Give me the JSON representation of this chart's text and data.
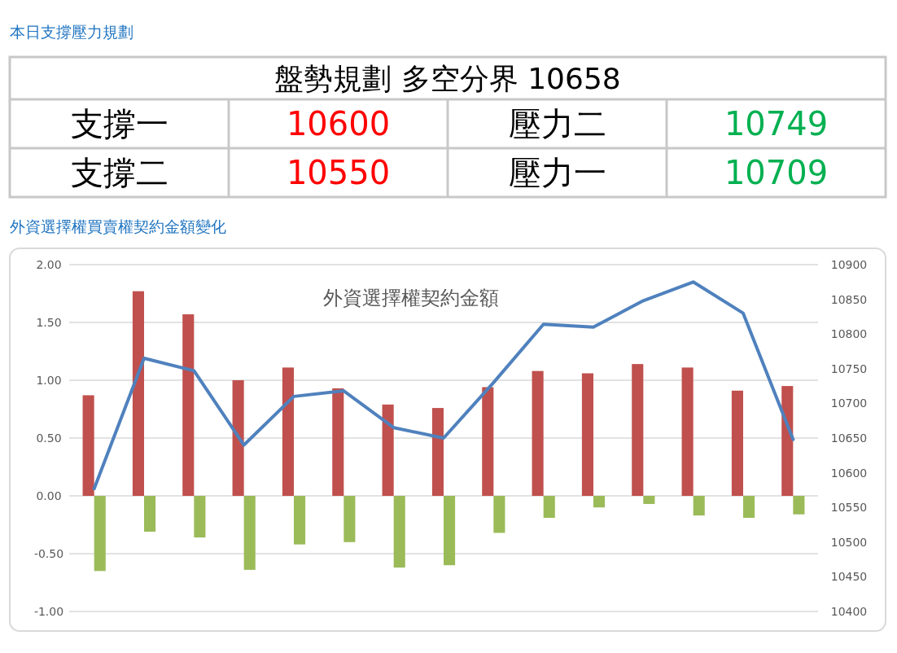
{
  "chart_data": [
    {
      "type": "other",
      "title": "本日支撐壓力規劃",
      "subtitle": "盤勢規劃 多空分界 10658",
      "annotations": [
        "支撐一",
        "10600",
        "壓力二",
        "10749",
        "支撐二",
        "10550",
        "壓力一",
        "10709"
      ],
      "colors": [
        "#000000",
        "#ff0000",
        "#000000",
        "#00b050",
        "#000000",
        "#ff0000",
        "#000000",
        "#00b050"
      ]
    },
    {
      "type": "bar",
      "title": "外資選擇權買賣權契約金額變化",
      "subtitle": "外資選擇權契約金額",
      "categories": [
        null,
        null,
        null,
        null,
        null,
        null,
        null,
        null,
        null,
        null,
        null,
        null,
        null,
        null,
        null
      ],
      "series": [
        {
          "color": "#c0504d",
          "values": [
            0.87,
            1.77,
            1.57,
            1.0,
            1.11,
            0.93,
            0.79,
            0.76,
            0.94,
            1.08,
            1.06,
            1.14,
            1.11,
            0.91,
            0.95
          ]
        },
        {
          "color": "#9bbb59",
          "values": [
            -0.65,
            -0.31,
            -0.36,
            -0.64,
            -0.42,
            -0.4,
            -0.62,
            -0.6,
            -0.32,
            -0.19,
            -0.1,
            -0.07,
            -0.17,
            -0.19,
            -0.16
          ]
        },
        {
          "type": "line",
          "axis": "y2",
          "color": "#4f81bd",
          "values": [
            10577,
            10765,
            10747,
            10640,
            10710,
            10718,
            10665,
            10650,
            10730,
            10814,
            10810,
            10848,
            10875,
            10830,
            10648
          ]
        }
      ],
      "ylim": [
        -1,
        2
      ],
      "yticks": [
        {
          "value": -1,
          "label": "-1.00"
        },
        {
          "value": -0.5,
          "label": "-0.50"
        },
        {
          "value": 0,
          "label": "0.00"
        },
        {
          "value": 0.5,
          "label": "0.50"
        },
        {
          "value": 1,
          "label": "1.00"
        },
        {
          "value": 1.5,
          "label": "1.50"
        },
        {
          "value": 2,
          "label": "2.00"
        }
      ],
      "y2lim": [
        10400,
        10900
      ],
      "y2ticks": [
        10400,
        10450,
        10500,
        10550,
        10600,
        10650,
        10700,
        10750,
        10800,
        10850,
        10900
      ],
      "grid": "y"
    }
  ]
}
